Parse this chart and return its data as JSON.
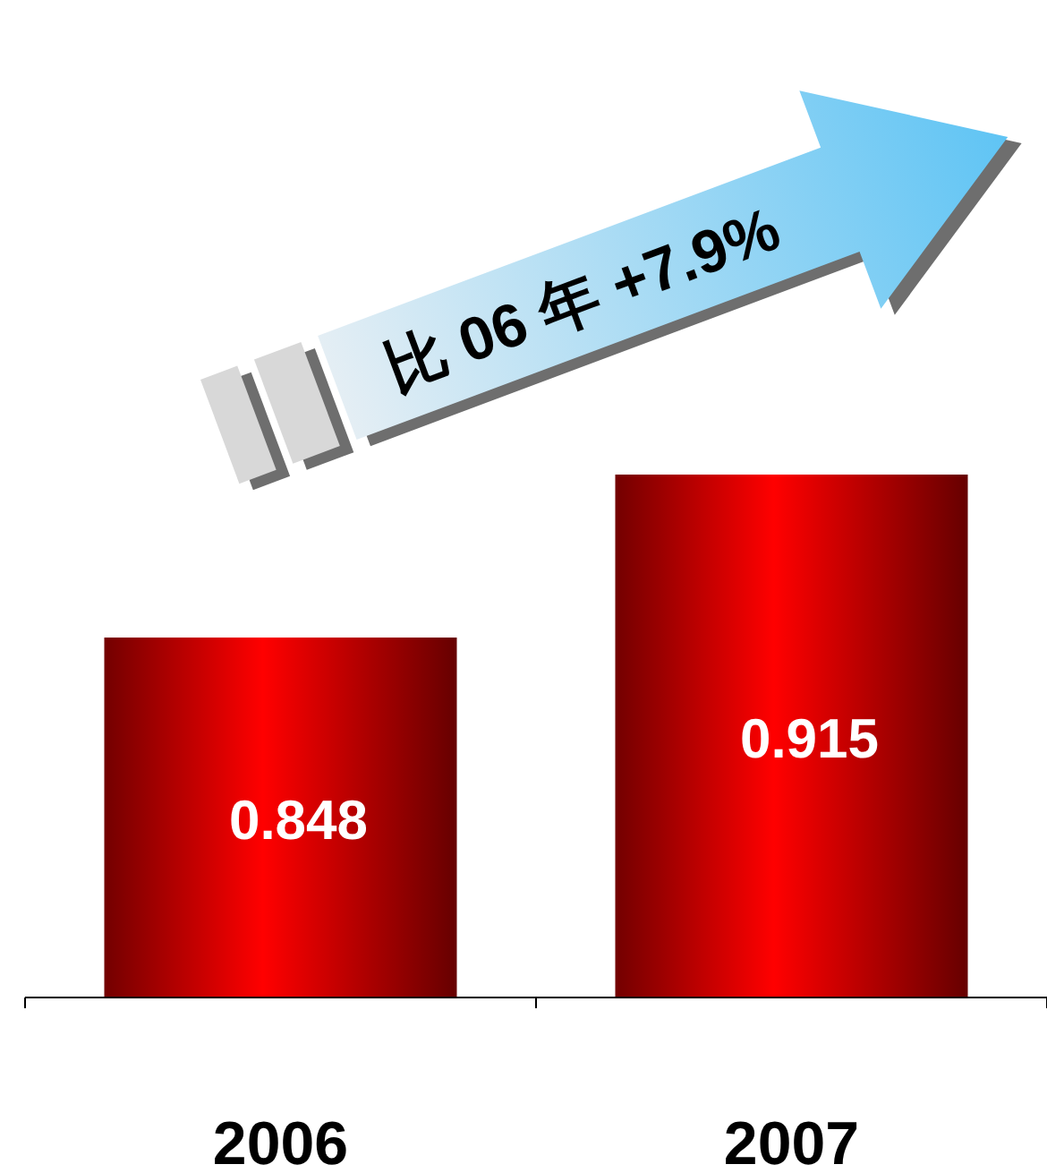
{
  "chart_data": {
    "type": "bar",
    "categories": [
      "2006",
      "2007"
    ],
    "values": [
      0.848,
      0.915
    ],
    "color": "#ff0000",
    "ylim": [
      0.7,
      0.915
    ],
    "data_labels": true,
    "annotations": [
      "比 06 年 +7.9%"
    ]
  }
}
